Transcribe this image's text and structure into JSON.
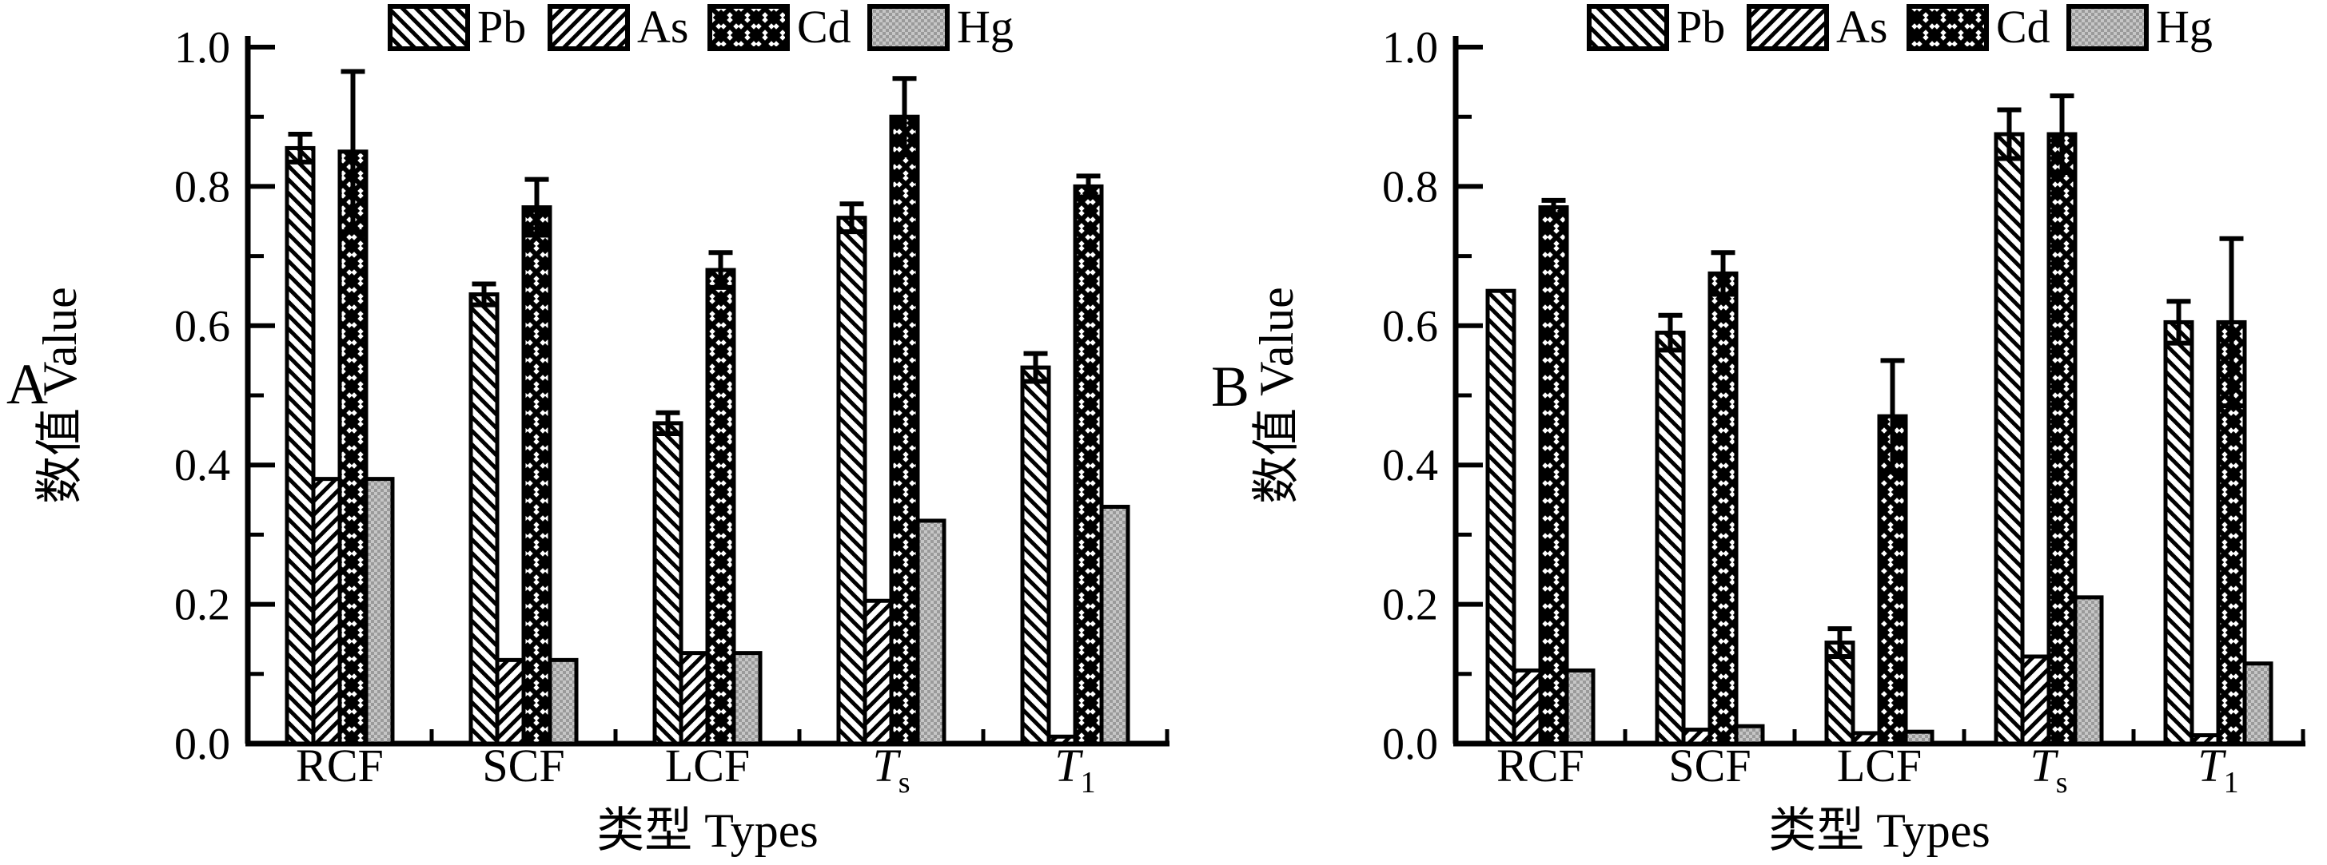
{
  "figure": {
    "background": "#ffffff",
    "ink": "#000000",
    "hg_gray": "#b5b5b5",
    "panel_letters": [
      "A",
      "B"
    ]
  },
  "chart_data": [
    {
      "panel": "A",
      "type": "bar",
      "title": "",
      "xlabel": "类型 Types",
      "ylabel": "数值 Value",
      "ylim": [
        0,
        1
      ],
      "yticks": [
        "0.0",
        "0.2",
        "0.4",
        "0.6",
        "0.8",
        "1.0"
      ],
      "minor_ytick_step": 0.1,
      "grid": false,
      "legend_position": "top",
      "categories": [
        {
          "label": "RCF"
        },
        {
          "label": "SCF"
        },
        {
          "label": "LCF"
        },
        {
          "label": "T",
          "sub": "s",
          "italic": true
        },
        {
          "label": "T",
          "sub": "1",
          "italic": true
        }
      ],
      "series": [
        {
          "name": "Pb",
          "pattern": "diag-back",
          "values": [
            0.855,
            0.645,
            0.46,
            0.755,
            0.54
          ],
          "errors": [
            0.02,
            0.015,
            0.015,
            0.02,
            0.02
          ]
        },
        {
          "name": "As",
          "pattern": "diag-fwd",
          "values": [
            0.38,
            0.12,
            0.13,
            0.205,
            0.01
          ],
          "errors": [
            0,
            0,
            0,
            0,
            0
          ]
        },
        {
          "name": "Cd",
          "pattern": "cross",
          "values": [
            0.85,
            0.77,
            0.68,
            0.9,
            0.8
          ],
          "errors": [
            0.115,
            0.04,
            0.025,
            0.055,
            0.015
          ]
        },
        {
          "name": "Hg",
          "pattern": "gray",
          "values": [
            0.38,
            0.12,
            0.13,
            0.32,
            0.34
          ],
          "errors": [
            0,
            0,
            0,
            0,
            0
          ]
        }
      ]
    },
    {
      "panel": "B",
      "type": "bar",
      "title": "",
      "xlabel": "类型 Types",
      "ylabel": "数值 Value",
      "ylim": [
        0,
        1
      ],
      "yticks": [
        "0.0",
        "0.2",
        "0.4",
        "0.6",
        "0.8",
        "1.0"
      ],
      "minor_ytick_step": 0.1,
      "grid": false,
      "legend_position": "top",
      "categories": [
        {
          "label": "RCF"
        },
        {
          "label": "SCF"
        },
        {
          "label": "LCF"
        },
        {
          "label": "T",
          "sub": "s",
          "italic": true
        },
        {
          "label": "T",
          "sub": "1",
          "italic": true
        }
      ],
      "series": [
        {
          "name": "Pb",
          "pattern": "diag-back",
          "values": [
            0.65,
            0.59,
            0.145,
            0.875,
            0.605
          ],
          "errors": [
            0,
            0.025,
            0.02,
            0.035,
            0.03
          ]
        },
        {
          "name": "As",
          "pattern": "diag-fwd",
          "values": [
            0.105,
            0.02,
            0.015,
            0.125,
            0.012
          ],
          "errors": [
            0,
            0,
            0,
            0,
            0
          ]
        },
        {
          "name": "Cd",
          "pattern": "cross",
          "values": [
            0.77,
            0.675,
            0.47,
            0.875,
            0.605
          ],
          "errors": [
            0.01,
            0.03,
            0.08,
            0.055,
            0.12
          ]
        },
        {
          "name": "Hg",
          "pattern": "gray",
          "values": [
            0.105,
            0.025,
            0.017,
            0.21,
            0.115
          ],
          "errors": [
            0,
            0,
            0,
            0,
            0
          ]
        }
      ]
    }
  ]
}
